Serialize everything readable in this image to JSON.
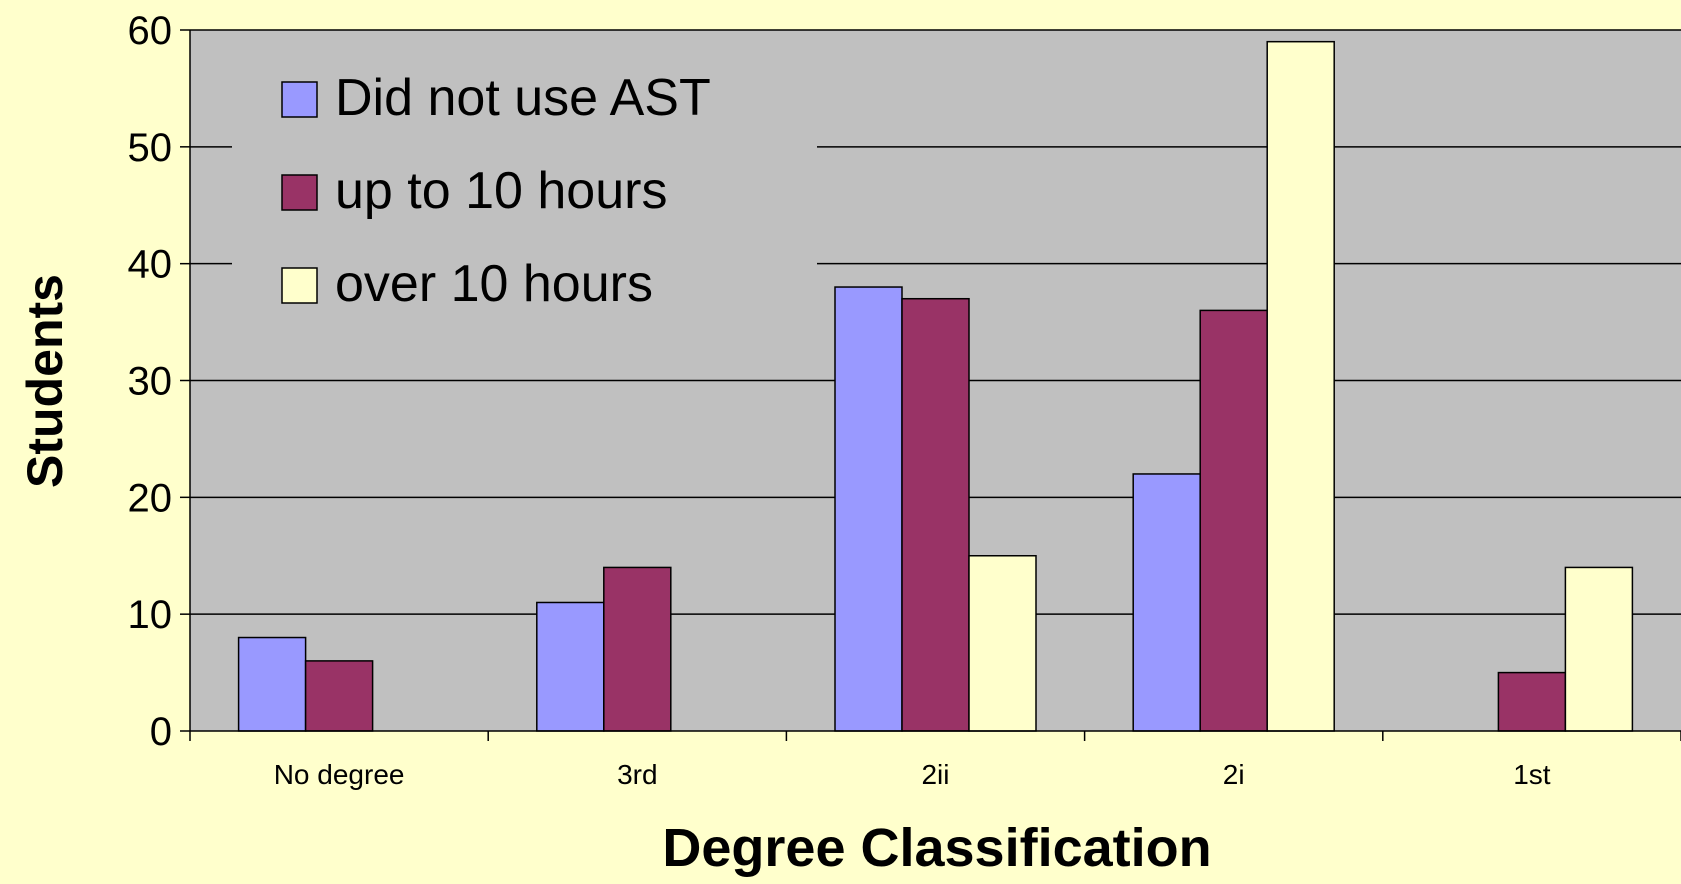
{
  "chart_data": {
    "type": "bar",
    "title": "",
    "xlabel": "Degree Classification",
    "ylabel": "Students",
    "ylim": [
      0,
      60
    ],
    "yticks": [
      0,
      10,
      20,
      30,
      40,
      50,
      60
    ],
    "categories": [
      "No degree",
      "3rd",
      "2ii",
      "2i",
      "1st"
    ],
    "series": [
      {
        "name": "Did not use AST",
        "color": "#9999FF",
        "values": [
          8,
          11,
          38,
          22,
          0
        ]
      },
      {
        "name": "up to 10 hours",
        "color": "#993366",
        "values": [
          6,
          14,
          37,
          36,
          5
        ]
      },
      {
        "name": "over 10 hours",
        "color": "#FFFFCC",
        "values": [
          0,
          0,
          15,
          59,
          14
        ]
      }
    ],
    "grid": true,
    "legend_position": "top-left",
    "plot_background": "#C0C0C0",
    "page_background": "#FFFFCC"
  }
}
